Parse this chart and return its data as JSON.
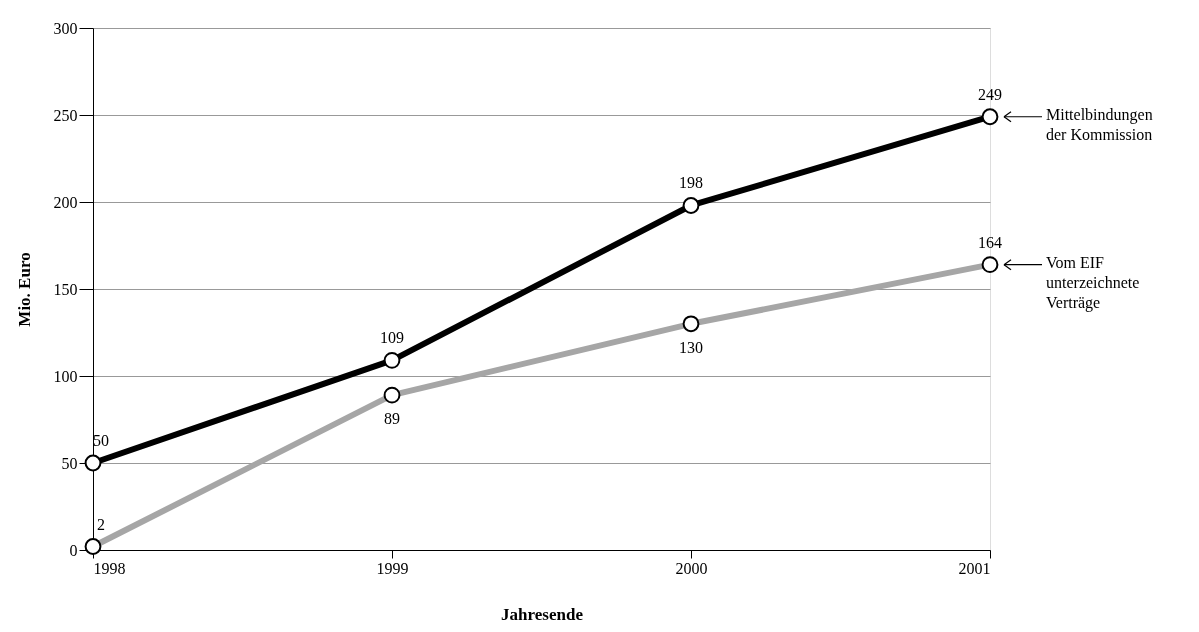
{
  "chart_data": {
    "type": "line",
    "xlabel": "Jahresende",
    "ylabel": "Mio. Euro",
    "x": [
      1998,
      1999,
      2000,
      2001
    ],
    "series": [
      {
        "name": "Mittelbindungen der Kommission",
        "color": "#000000",
        "values": [
          50,
          109,
          198,
          249
        ]
      },
      {
        "name": "Vom EIF unterzeichnete Verträge",
        "color": "#a6a6a6",
        "values": [
          2,
          89,
          130,
          164
        ]
      }
    ],
    "xlim": [
      1998,
      2001
    ],
    "xticks": [
      1998,
      1999,
      2000,
      2001
    ],
    "ylim": [
      0,
      300
    ],
    "yticks": [
      0,
      50,
      100,
      150,
      200,
      250,
      300
    ],
    "grid": "y",
    "marker": "circle",
    "line_style": "solid",
    "data_labels": true,
    "legend": "right"
  }
}
